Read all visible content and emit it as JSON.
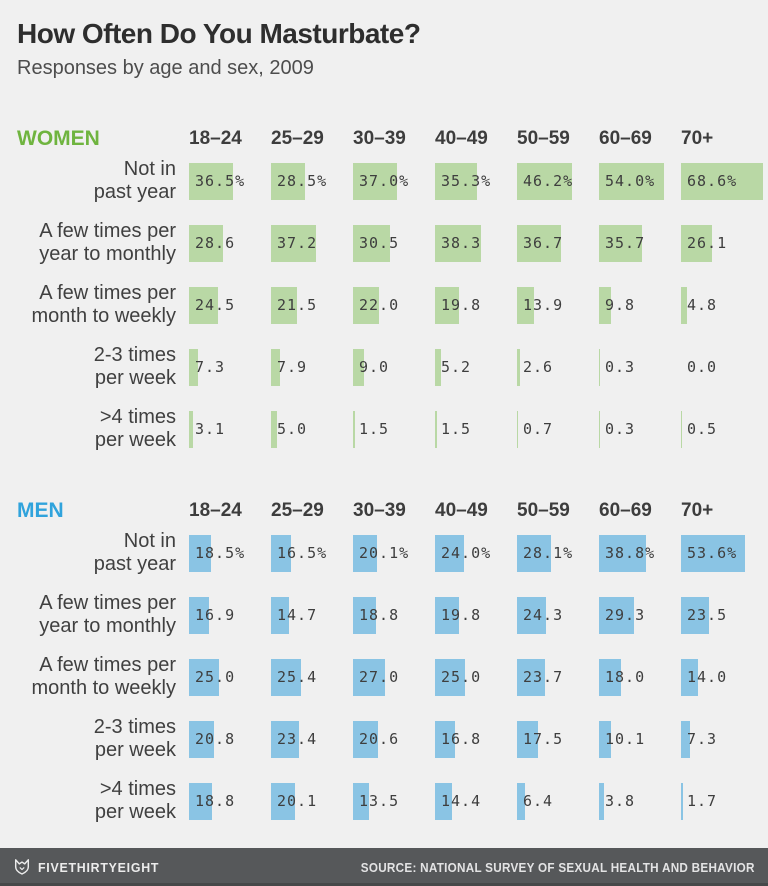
{
  "header": {
    "title": "How Often Do You Masturbate?",
    "subtitle": "Responses by age and sex, 2009"
  },
  "chart_data": {
    "type": "bar",
    "orientation": "horizontal",
    "unit": "%",
    "xlim": [
      0,
      70
    ],
    "age_groups": [
      "18–24",
      "25–29",
      "30–39",
      "40–49",
      "50–59",
      "60–69",
      "70+"
    ],
    "series": [
      {
        "name": "WOMEN",
        "name_color": "#6fb43f",
        "bar_color": "#b9d8a5",
        "rows": [
          {
            "label": "Not in past year",
            "label_lines": [
              "Not in",
              "past year"
            ],
            "show_percent_sign": true,
            "values": [
              36.5,
              28.5,
              37.0,
              35.3,
              46.2,
              54.0,
              68.6
            ]
          },
          {
            "label": "A few times per year to monthly",
            "label_lines": [
              "A few times per",
              "year to monthly"
            ],
            "show_percent_sign": false,
            "values": [
              28.6,
              37.2,
              30.5,
              38.3,
              36.7,
              35.7,
              26.1
            ]
          },
          {
            "label": "A few times per month to weekly",
            "label_lines": [
              "A few times per",
              "month to weekly"
            ],
            "show_percent_sign": false,
            "values": [
              24.5,
              21.5,
              22.0,
              19.8,
              13.9,
              9.8,
              4.8
            ]
          },
          {
            "label": "2-3 times per week",
            "label_lines": [
              "2-3 times",
              "per week"
            ],
            "show_percent_sign": false,
            "values": [
              7.3,
              7.9,
              9.0,
              5.2,
              2.6,
              0.3,
              0.0
            ]
          },
          {
            "label": ">4 times per week",
            "label_lines": [
              ">4 times",
              "per week"
            ],
            "show_percent_sign": false,
            "values": [
              3.1,
              5.0,
              1.5,
              1.5,
              0.7,
              0.3,
              0.5
            ]
          }
        ]
      },
      {
        "name": "MEN",
        "name_color": "#30a3dc",
        "bar_color": "#8ac4e4",
        "rows": [
          {
            "label": "Not in past year",
            "label_lines": [
              "Not in",
              "past year"
            ],
            "show_percent_sign": true,
            "values": [
              18.5,
              16.5,
              20.1,
              24.0,
              28.1,
              38.8,
              53.6
            ]
          },
          {
            "label": "A few times per year to monthly",
            "label_lines": [
              "A few times per",
              "year to monthly"
            ],
            "show_percent_sign": false,
            "values": [
              16.9,
              14.7,
              18.8,
              19.8,
              24.3,
              29.3,
              23.5
            ]
          },
          {
            "label": "A few times per month to weekly",
            "label_lines": [
              "A few times per",
              "month to weekly"
            ],
            "show_percent_sign": false,
            "values": [
              25.0,
              25.4,
              27.0,
              25.0,
              23.7,
              18.0,
              14.0
            ]
          },
          {
            "label": "2-3 times per week",
            "label_lines": [
              "2-3 times",
              "per week"
            ],
            "show_percent_sign": false,
            "values": [
              20.8,
              23.4,
              20.6,
              16.8,
              17.5,
              10.1,
              7.3
            ]
          },
          {
            "label": ">4 times per week",
            "label_lines": [
              ">4 times",
              "per week"
            ],
            "show_percent_sign": false,
            "values": [
              18.8,
              20.1,
              13.5,
              14.4,
              6.4,
              3.8,
              1.7
            ]
          }
        ]
      }
    ],
    "source": "NATIONAL SURVEY OF SEXUAL HEALTH AND BEHAVIOR"
  },
  "footer": {
    "brand": "FIVETHIRTYEIGHT",
    "source": "SOURCE: NATIONAL SURVEY OF SEXUAL HEALTH AND BEHAVIOR"
  },
  "style": {
    "background": "#f0f0f0",
    "footer_background": "#56585a",
    "value_text_color": "#3e3e3e"
  }
}
